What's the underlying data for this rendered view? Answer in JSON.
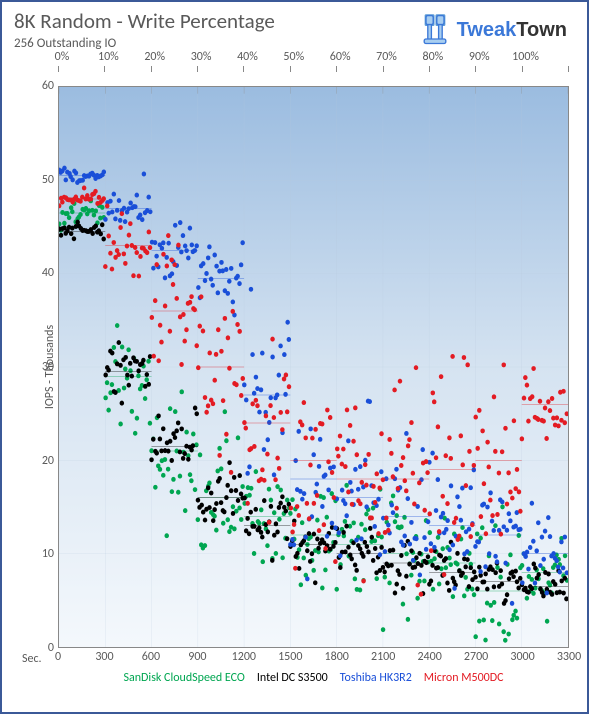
{
  "header": {
    "title": "8K Random - Write Percentage",
    "subtitle": "256  Outstanding IO",
    "logo_tweak": "Tweak",
    "logo_town": "Town"
  },
  "chart": {
    "type": "scatter",
    "background_gradient": [
      "#9bbce0",
      "#d5e3f1",
      "#f4f8fc"
    ],
    "border_color": "#3b5998",
    "grid_color": "#b8c9dc",
    "text_color": "#595959",
    "ylabel": "IOPS - Thousands",
    "ylim": [
      0,
      60
    ],
    "ytick_step": 10,
    "xlabel": "Sec.",
    "xlim": [
      0,
      3300
    ],
    "xtick_step": 300,
    "top_axis_labels": [
      "0%",
      "10%",
      "20%",
      "30%",
      "40%",
      "50%",
      "60%",
      "70%",
      "80%",
      "90%",
      "100%"
    ],
    "marker_size": 2.2,
    "series": [
      {
        "name": "SanDisk CloudSpeed ECO",
        "color": "#00a651",
        "step_means": [
          46.5,
          29,
          21,
          16,
          14,
          12,
          11,
          10,
          9,
          6,
          8
        ],
        "step_spread": [
          1.5,
          6,
          8,
          8,
          7,
          6,
          6,
          6,
          6,
          8,
          5
        ]
      },
      {
        "name": "Intel DC S3500",
        "color": "#000000",
        "step_means": [
          44.5,
          29.5,
          21.5,
          16,
          13,
          11,
          10,
          9,
          8,
          7,
          6.5
        ],
        "step_spread": [
          1,
          3,
          3,
          3,
          3,
          3,
          3,
          3,
          2.5,
          2,
          2
        ]
      },
      {
        "name": "Toshiba HK3R2",
        "color": "#1a4fd8",
        "step_means": [
          50.5,
          47,
          42.5,
          39.5,
          27,
          18,
          16,
          14,
          13,
          12,
          10
        ],
        "step_spread": [
          0.7,
          2.5,
          3,
          4,
          10,
          9,
          8,
          7,
          6,
          6,
          5
        ]
      },
      {
        "name": "Micron M500DC",
        "color": "#e31b23",
        "step_means": [
          48,
          43,
          36,
          30,
          24,
          20,
          18,
          18,
          19,
          20,
          26
        ],
        "step_spread": [
          1,
          3,
          8,
          10,
          10,
          9,
          10,
          11,
          12,
          10,
          5
        ]
      }
    ]
  },
  "legend": {
    "items": [
      {
        "label": "SanDisk CloudSpeed ECO",
        "color": "#00a651"
      },
      {
        "label": "Intel DC S3500",
        "color": "#000000"
      },
      {
        "label": "Toshiba HK3R2",
        "color": "#1a4fd8"
      },
      {
        "label": "Micron M500DC",
        "color": "#e31b23"
      }
    ]
  }
}
